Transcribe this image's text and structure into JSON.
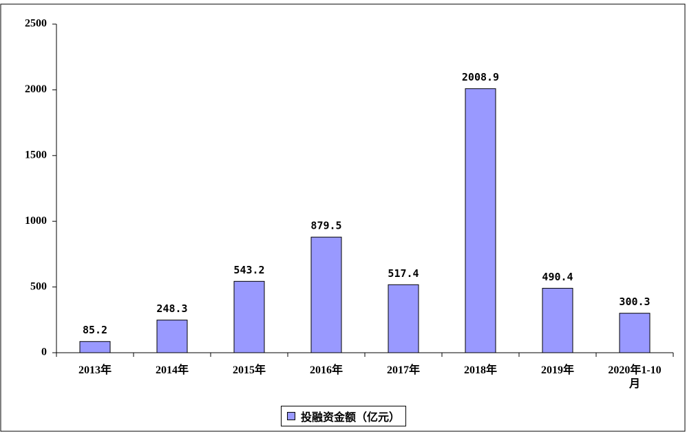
{
  "chart_data": {
    "type": "bar",
    "categories": [
      "2013年",
      "2014年",
      "2015年",
      "2016年",
      "2017年",
      "2018年",
      "2019年",
      "2020年1-10月"
    ],
    "series": [
      {
        "name": "投融资金额（亿元）",
        "color": "#9999ff",
        "values": [
          85.2,
          248.3,
          543.2,
          879.5,
          517.4,
          2008.9,
          490.4,
          300.3
        ]
      }
    ],
    "ylim": [
      0,
      2500
    ],
    "yticks": [
      0,
      500,
      1000,
      1500,
      2000,
      2500
    ],
    "data_labels": true,
    "legend": "bottom"
  }
}
